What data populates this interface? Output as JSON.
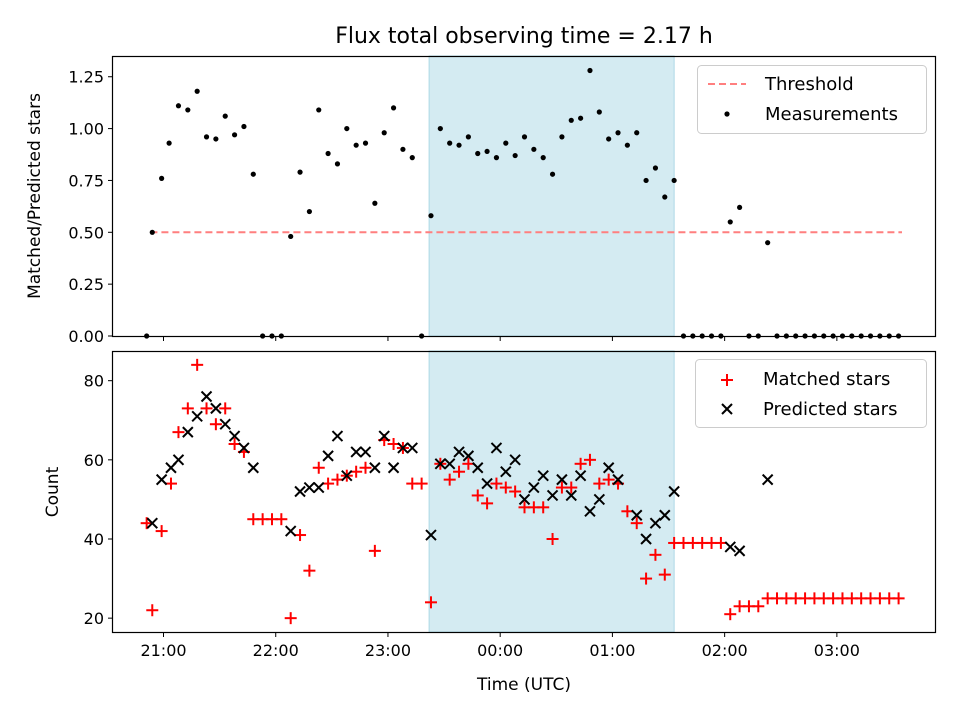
{
  "chart_data": [
    {
      "type": "scatter",
      "title": "Flux total observing time = 2.17 h",
      "xlabel": "",
      "ylabel": "Matched/Predicted stars",
      "ylim": [
        0,
        1.35
      ],
      "yticks": [
        0,
        0.25,
        0.5,
        0.75,
        1,
        1.25
      ],
      "ytick_labels": [
        "0.00",
        "0.25",
        "0.50",
        "0.75",
        "1.00",
        "1.25"
      ],
      "xlim": [
        "20:33",
        "03:53"
      ],
      "xticks": [
        "21:00",
        "22:00",
        "23:00",
        "00:00",
        "01:00",
        "02:00",
        "03:00"
      ],
      "grid": false,
      "legend_position": "upper right",
      "shaded_interval": {
        "start": "23:22",
        "end": "01:33",
        "color": "#d4ebf2"
      },
      "threshold": {
        "name": "Threshold",
        "value": 0.5,
        "x_start": "20:53",
        "x_end": "03:53",
        "color": "#ff7f7f"
      },
      "series": [
        {
          "name": "Measurements",
          "marker": "dot",
          "color": "#000000",
          "points": [
            [
              "20:51",
              0.0
            ],
            [
              "20:54",
              0.5
            ],
            [
              "20:59",
              0.76
            ],
            [
              "21:03",
              0.93
            ],
            [
              "21:08",
              1.11
            ],
            [
              "21:13",
              1.09
            ],
            [
              "21:18",
              1.18
            ],
            [
              "21:23",
              0.96
            ],
            [
              "21:28",
              0.95
            ],
            [
              "21:33",
              1.06
            ],
            [
              "21:38",
              0.97
            ],
            [
              "21:43",
              1.01
            ],
            [
              "21:48",
              0.78
            ],
            [
              "21:53",
              0.0
            ],
            [
              "21:58",
              0.0
            ],
            [
              "22:03",
              0.0
            ],
            [
              "22:08",
              0.48
            ],
            [
              "22:13",
              0.79
            ],
            [
              "22:18",
              0.6
            ],
            [
              "22:23",
              1.09
            ],
            [
              "22:28",
              0.88
            ],
            [
              "22:33",
              0.83
            ],
            [
              "22:38",
              1.0
            ],
            [
              "22:43",
              0.92
            ],
            [
              "22:48",
              0.93
            ],
            [
              "22:53",
              0.64
            ],
            [
              "22:58",
              0.98
            ],
            [
              "23:03",
              1.1
            ],
            [
              "23:08",
              0.9
            ],
            [
              "23:13",
              0.86
            ],
            [
              "23:18",
              0.0
            ],
            [
              "23:23",
              0.58
            ],
            [
              "23:28",
              1.0
            ],
            [
              "23:33",
              0.93
            ],
            [
              "23:38",
              0.92
            ],
            [
              "23:43",
              0.96
            ],
            [
              "23:48",
              0.88
            ],
            [
              "23:53",
              0.89
            ],
            [
              "23:58",
              0.86
            ],
            [
              "00:03",
              0.93
            ],
            [
              "00:08",
              0.87
            ],
            [
              "00:13",
              0.96
            ],
            [
              "00:18",
              0.9
            ],
            [
              "00:23",
              0.86
            ],
            [
              "00:28",
              0.78
            ],
            [
              "00:33",
              0.96
            ],
            [
              "00:38",
              1.04
            ],
            [
              "00:43",
              1.05
            ],
            [
              "00:48",
              1.28
            ],
            [
              "00:53",
              1.08
            ],
            [
              "00:58",
              0.95
            ],
            [
              "01:03",
              0.98
            ],
            [
              "01:08",
              0.92
            ],
            [
              "01:13",
              0.98
            ],
            [
              "01:18",
              0.75
            ],
            [
              "01:23",
              0.81
            ],
            [
              "01:28",
              0.67
            ],
            [
              "01:33",
              0.75
            ],
            [
              "01:38",
              0.0
            ],
            [
              "01:43",
              0.0
            ],
            [
              "01:48",
              0.0
            ],
            [
              "01:53",
              0.0
            ],
            [
              "01:58",
              0.0
            ],
            [
              "02:03",
              0.55
            ],
            [
              "02:08",
              0.62
            ],
            [
              "02:13",
              0.0
            ],
            [
              "02:18",
              0.0
            ],
            [
              "02:23",
              0.45
            ],
            [
              "02:28",
              0.0
            ],
            [
              "02:33",
              0.0
            ],
            [
              "02:38",
              0.0
            ],
            [
              "02:43",
              0.0
            ],
            [
              "02:48",
              0.0
            ],
            [
              "02:53",
              0.0
            ],
            [
              "02:58",
              0.0
            ],
            [
              "03:03",
              0.0
            ],
            [
              "03:08",
              0.0
            ],
            [
              "03:13",
              0.0
            ],
            [
              "03:18",
              0.0
            ],
            [
              "03:23",
              0.0
            ],
            [
              "03:28",
              0.0
            ],
            [
              "03:33",
              0.0
            ]
          ]
        }
      ]
    },
    {
      "type": "scatter",
      "title": "",
      "xlabel": "Time (UTC)",
      "ylabel": "Count",
      "ylim": [
        16.5,
        87.5
      ],
      "yticks": [
        20,
        40,
        60,
        80
      ],
      "ytick_labels": [
        "20",
        "40",
        "60",
        "80"
      ],
      "xlim": [
        "20:33",
        "03:53"
      ],
      "xticks": [
        "21:00",
        "22:00",
        "23:00",
        "00:00",
        "01:00",
        "02:00",
        "03:00"
      ],
      "grid": false,
      "legend_position": "upper right",
      "shaded_interval": {
        "start": "23:22",
        "end": "01:33",
        "color": "#d4ebf2"
      },
      "series": [
        {
          "name": "Matched stars",
          "marker": "plus",
          "color": "#ff0000",
          "points": [
            [
              "20:51",
              44
            ],
            [
              "20:54",
              22
            ],
            [
              "20:59",
              42
            ],
            [
              "21:04",
              54
            ],
            [
              "21:08",
              67
            ],
            [
              "21:13",
              73
            ],
            [
              "21:18",
              84
            ],
            [
              "21:23",
              73
            ],
            [
              "21:28",
              69
            ],
            [
              "21:33",
              73
            ],
            [
              "21:38",
              64
            ],
            [
              "21:43",
              62
            ],
            [
              "21:48",
              45
            ],
            [
              "21:53",
              45
            ],
            [
              "21:58",
              45
            ],
            [
              "22:03",
              45
            ],
            [
              "22:08",
              20
            ],
            [
              "22:13",
              41
            ],
            [
              "22:18",
              32
            ],
            [
              "22:23",
              58
            ],
            [
              "22:28",
              54
            ],
            [
              "22:33",
              55
            ],
            [
              "22:38",
              56
            ],
            [
              "22:43",
              57
            ],
            [
              "22:48",
              58
            ],
            [
              "22:53",
              37
            ],
            [
              "22:58",
              65
            ],
            [
              "23:03",
              64
            ],
            [
              "23:08",
              63
            ],
            [
              "23:13",
              54
            ],
            [
              "23:18",
              54
            ],
            [
              "23:23",
              24
            ],
            [
              "23:28",
              59
            ],
            [
              "23:33",
              55
            ],
            [
              "23:38",
              57
            ],
            [
              "23:43",
              59
            ],
            [
              "23:48",
              51
            ],
            [
              "23:53",
              49
            ],
            [
              "23:58",
              54
            ],
            [
              "00:03",
              53
            ],
            [
              "00:08",
              52
            ],
            [
              "00:13",
              48
            ],
            [
              "00:18",
              48
            ],
            [
              "00:23",
              48
            ],
            [
              "00:28",
              40
            ],
            [
              "00:33",
              53
            ],
            [
              "00:38",
              53
            ],
            [
              "00:43",
              59
            ],
            [
              "00:48",
              60
            ],
            [
              "00:53",
              54
            ],
            [
              "00:58",
              55
            ],
            [
              "01:03",
              54
            ],
            [
              "01:08",
              47
            ],
            [
              "01:13",
              44
            ],
            [
              "01:18",
              30
            ],
            [
              "01:23",
              36
            ],
            [
              "01:28",
              31
            ],
            [
              "01:33",
              39
            ],
            [
              "01:38",
              39
            ],
            [
              "01:43",
              39
            ],
            [
              "01:48",
              39
            ],
            [
              "01:53",
              39
            ],
            [
              "01:58",
              39
            ],
            [
              "02:03",
              21
            ],
            [
              "02:08",
              23
            ],
            [
              "02:13",
              23
            ],
            [
              "02:18",
              23
            ],
            [
              "02:23",
              25
            ],
            [
              "02:28",
              25
            ],
            [
              "02:33",
              25
            ],
            [
              "02:38",
              25
            ],
            [
              "02:43",
              25
            ],
            [
              "02:48",
              25
            ],
            [
              "02:53",
              25
            ],
            [
              "02:58",
              25
            ],
            [
              "03:03",
              25
            ],
            [
              "03:08",
              25
            ],
            [
              "03:13",
              25
            ],
            [
              "03:18",
              25
            ],
            [
              "03:23",
              25
            ],
            [
              "03:28",
              25
            ],
            [
              "03:33",
              25
            ]
          ]
        },
        {
          "name": "Predicted stars",
          "marker": "x",
          "color": "#000000",
          "points": [
            [
              "20:54",
              44
            ],
            [
              "20:59",
              55
            ],
            [
              "21:04",
              58
            ],
            [
              "21:08",
              60
            ],
            [
              "21:13",
              67
            ],
            [
              "21:18",
              71
            ],
            [
              "21:23",
              76
            ],
            [
              "21:28",
              73
            ],
            [
              "21:33",
              69
            ],
            [
              "21:38",
              66
            ],
            [
              "21:43",
              63
            ],
            [
              "21:48",
              58
            ],
            [
              "22:08",
              42
            ],
            [
              "22:13",
              52
            ],
            [
              "22:18",
              53
            ],
            [
              "22:23",
              53
            ],
            [
              "22:28",
              61
            ],
            [
              "22:33",
              66
            ],
            [
              "22:38",
              56
            ],
            [
              "22:43",
              62
            ],
            [
              "22:48",
              62
            ],
            [
              "22:53",
              58
            ],
            [
              "22:58",
              66
            ],
            [
              "23:03",
              58
            ],
            [
              "23:08",
              63
            ],
            [
              "23:13",
              63
            ],
            [
              "23:23",
              41
            ],
            [
              "23:28",
              59
            ],
            [
              "23:33",
              59
            ],
            [
              "23:38",
              62
            ],
            [
              "23:43",
              61
            ],
            [
              "23:48",
              58
            ],
            [
              "23:53",
              54
            ],
            [
              "23:58",
              63
            ],
            [
              "00:03",
              57
            ],
            [
              "00:08",
              60
            ],
            [
              "00:13",
              50
            ],
            [
              "00:18",
              53
            ],
            [
              "00:23",
              56
            ],
            [
              "00:28",
              51
            ],
            [
              "00:33",
              55
            ],
            [
              "00:38",
              51
            ],
            [
              "00:43",
              56
            ],
            [
              "00:48",
              47
            ],
            [
              "00:53",
              50
            ],
            [
              "00:58",
              58
            ],
            [
              "01:03",
              55
            ],
            [
              "01:13",
              46
            ],
            [
              "01:18",
              40
            ],
            [
              "01:23",
              44
            ],
            [
              "01:28",
              46
            ],
            [
              "01:33",
              52
            ],
            [
              "02:03",
              38
            ],
            [
              "02:08",
              37
            ],
            [
              "02:23",
              55
            ]
          ]
        }
      ]
    }
  ]
}
